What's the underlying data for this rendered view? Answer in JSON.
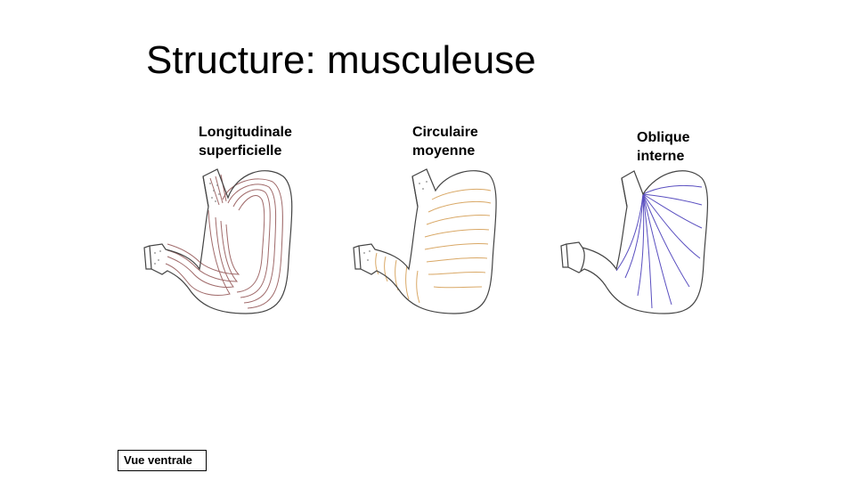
{
  "title": "Structure: musculeuse",
  "layers": [
    {
      "id": "longitudinale",
      "line1": "Longitudinale",
      "line2": "superficielle",
      "fiber_color": "#a06a6a"
    },
    {
      "id": "circulaire",
      "line1": "Circulaire",
      "line2": "moyenne",
      "fiber_color": "#d9a866"
    },
    {
      "id": "oblique",
      "line1": "Oblique",
      "line2": "interne",
      "fiber_color": "#5a4fc0"
    }
  ],
  "view_label": "Vue ventrale",
  "outline_color": "#444444"
}
